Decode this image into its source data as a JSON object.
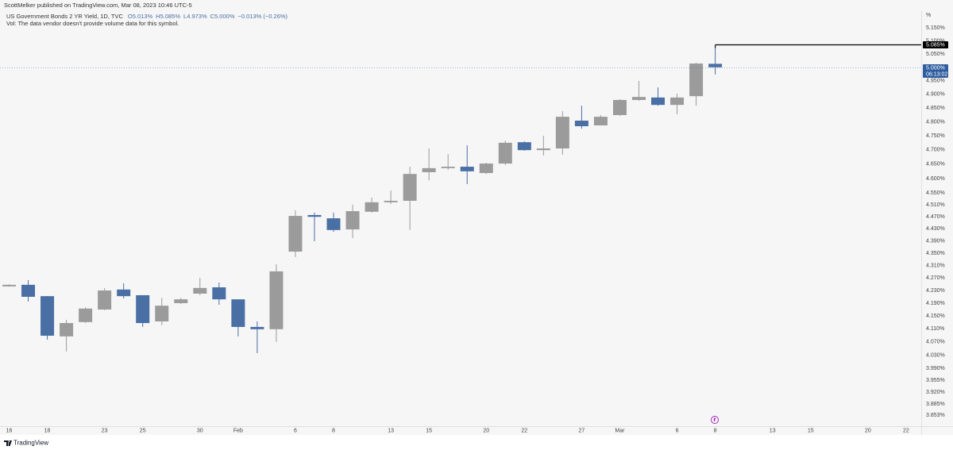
{
  "header": {
    "published": "ScottMelker published on TradingView.com, Mar 08, 2023 10:46 UTC-5"
  },
  "footer": {
    "brand": "TradingView"
  },
  "chart_data": {
    "type": "candlestick",
    "title": "US Government Bonds 2 YR Yield, 1D, TVC",
    "ohlc_labels": [
      "O5.013%",
      "H5.085%",
      "L4.973%",
      "C5.000%",
      "−0.013% (−0.26%)"
    ],
    "note": "Vol: The data vendor doesn't provide volume data for this symbol.",
    "y_axis_unit": "%",
    "categories": [
      "16",
      null,
      "18",
      null,
      null,
      "23",
      null,
      "25",
      null,
      null,
      "30",
      null,
      "Feb",
      null,
      null,
      "6",
      null,
      "8",
      null,
      null,
      "13",
      null,
      "15",
      null,
      null,
      "20",
      null,
      "22",
      null,
      null,
      "27",
      null,
      "Mar",
      null,
      null,
      "6",
      null,
      "8",
      null,
      null,
      "13",
      null,
      "15",
      null,
      null,
      "20",
      null,
      "22",
      null
    ],
    "open": [
      4.243,
      4.248,
      4.212,
      4.087,
      4.131,
      4.17,
      4.233,
      4.215,
      4.133,
      4.19,
      4.22,
      4.24,
      4.202,
      4.116,
      4.109,
      4.355,
      4.476,
      4.465,
      4.428,
      4.487,
      4.519,
      4.524,
      4.622,
      4.636,
      4.641,
      4.619,
      4.652,
      4.727,
      4.699,
      4.705,
      4.804,
      4.787,
      4.824,
      4.879,
      4.888,
      4.861,
      4.893,
      5.013,
      null,
      null,
      null,
      null,
      null,
      null,
      null,
      null,
      null,
      null,
      null
    ],
    "high": [
      4.25,
      4.263,
      4.212,
      4.138,
      4.177,
      4.238,
      4.253,
      4.215,
      4.207,
      4.207,
      4.27,
      4.255,
      4.202,
      4.133,
      4.314,
      4.492,
      4.484,
      4.484,
      4.511,
      4.535,
      4.559,
      4.641,
      4.705,
      4.685,
      4.716,
      4.655,
      4.733,
      4.73,
      4.75,
      4.838,
      4.858,
      4.824,
      4.882,
      4.949,
      4.925,
      4.902,
      5.017,
      5.085,
      null,
      null,
      null,
      null,
      null,
      null,
      null,
      null,
      null,
      null,
      null
    ],
    "low": [
      4.242,
      4.195,
      4.077,
      4.041,
      4.128,
      4.168,
      4.205,
      4.116,
      4.121,
      4.187,
      4.215,
      4.185,
      4.087,
      4.036,
      4.07,
      4.337,
      4.389,
      4.42,
      4.399,
      4.484,
      4.513,
      4.426,
      4.594,
      4.63,
      4.581,
      4.616,
      4.647,
      4.697,
      4.68,
      4.683,
      4.775,
      4.787,
      4.821,
      4.876,
      4.858,
      4.827,
      4.858,
      4.973,
      null,
      null,
      null,
      null,
      null,
      null,
      null,
      null,
      null,
      null,
      null
    ],
    "close": [
      4.248,
      4.21,
      4.089,
      4.128,
      4.173,
      4.23,
      4.212,
      4.128,
      4.182,
      4.202,
      4.238,
      4.202,
      4.116,
      4.109,
      4.291,
      4.473,
      4.47,
      4.426,
      4.489,
      4.519,
      4.524,
      4.616,
      4.636,
      4.641,
      4.625,
      4.652,
      4.725,
      4.699,
      4.705,
      4.818,
      4.784,
      4.818,
      4.879,
      4.89,
      4.861,
      4.888,
      5.014,
      5.0,
      null,
      null,
      null,
      null,
      null,
      null,
      null,
      null,
      null,
      null,
      null
    ],
    "up_color": "#9b9b9b",
    "down_color": "#4a6fa5",
    "ylim": [
      3.821,
      5.218
    ],
    "log_scale": true,
    "grid": false,
    "yticks": [
      {
        "value": 5.15,
        "label": "5.150%"
      },
      {
        "value": 5.1,
        "label": "5.100%"
      },
      {
        "value": 5.05,
        "label": "5.050%"
      },
      {
        "value": 4.95,
        "label": "4.950%"
      },
      {
        "value": 4.9,
        "label": "4.900%"
      },
      {
        "value": 4.85,
        "label": "4.850%"
      },
      {
        "value": 4.8,
        "label": "4.800%"
      },
      {
        "value": 4.75,
        "label": "4.750%"
      },
      {
        "value": 4.7,
        "label": "4.700%"
      },
      {
        "value": 4.65,
        "label": "4.650%"
      },
      {
        "value": 4.6,
        "label": "4.600%"
      },
      {
        "value": 4.55,
        "label": "4.550%"
      },
      {
        "value": 4.51,
        "label": "4.510%"
      },
      {
        "value": 4.47,
        "label": "4.470%"
      },
      {
        "value": 4.43,
        "label": "4.430%"
      },
      {
        "value": 4.39,
        "label": "4.390%"
      },
      {
        "value": 4.35,
        "label": "4.350%"
      },
      {
        "value": 4.31,
        "label": "4.310%"
      },
      {
        "value": 4.27,
        "label": "4.270%"
      },
      {
        "value": 4.23,
        "label": "4.230%"
      },
      {
        "value": 4.19,
        "label": "4.190%"
      },
      {
        "value": 4.15,
        "label": "4.150%"
      },
      {
        "value": 4.11,
        "label": "4.110%"
      },
      {
        "value": 4.07,
        "label": "4.070%"
      },
      {
        "value": 4.03,
        "label": "4.030%"
      },
      {
        "value": 3.99,
        "label": "3.990%"
      },
      {
        "value": 3.955,
        "label": "3.955%"
      },
      {
        "value": 3.92,
        "label": "3.920%"
      },
      {
        "value": 3.885,
        "label": "3.885%"
      },
      {
        "value": 3.853,
        "label": "3.853%"
      }
    ],
    "price_lines": [
      {
        "value": 5.085,
        "label": "5.085%",
        "color": "#000000",
        "style": "solid"
      },
      {
        "value": 5.0,
        "label": "5.000%",
        "sublabel": "06:13:02",
        "color": "#2f5da0",
        "style": "dotted"
      }
    ]
  }
}
